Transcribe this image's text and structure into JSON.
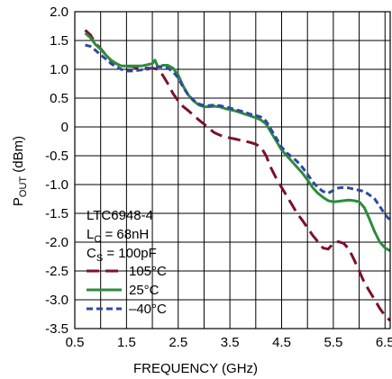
{
  "chart_data": {
    "type": "line",
    "title": "",
    "xlabel": "FREQUENCY (GHz)",
    "ylabel_main": "P",
    "ylabel_sub": "OUT",
    "ylabel_tail": " (dBm)",
    "xlim": [
      0.5,
      6.6
    ],
    "ylim": [
      -3.5,
      2.0
    ],
    "x_ticks": [
      0.5,
      1.5,
      2.5,
      3.5,
      4.5,
      5.5,
      6.5
    ],
    "x_tick_labels": [
      "0.5",
      "1.5",
      "2.5",
      "3.5",
      "4.5",
      "5.5",
      "6.5"
    ],
    "y_ticks": [
      2.0,
      1.5,
      1.0,
      0.5,
      0,
      -0.5,
      -1.0,
      -1.5,
      -2.0,
      -2.5,
      -3.0,
      -3.5
    ],
    "y_tick_labels": [
      "2.0",
      "1.5",
      "1.0",
      "0.5",
      "0",
      "-0.5",
      "-1.0",
      "-1.5",
      "-2.0",
      "-2.5",
      "-3.0",
      "-3.5"
    ],
    "grid": true,
    "annotation_lines": [
      {
        "main": "LTC6948-4",
        "sub": ""
      },
      {
        "main": "L",
        "sub": "C",
        "tail": " = 68nH"
      },
      {
        "main": "C",
        "sub": "S",
        "tail": " = 100pF"
      }
    ],
    "series": [
      {
        "name": "105°C",
        "color": "#7a1228",
        "dash": "long-dash",
        "x": [
          0.7,
          0.8,
          0.9,
          1.0,
          1.1,
          1.2,
          1.3,
          1.4,
          1.5,
          1.6,
          1.7,
          1.8,
          1.9,
          2.0,
          2.1,
          2.2,
          2.3,
          2.4,
          2.5,
          2.6,
          2.7,
          2.8,
          2.9,
          3.0,
          3.1,
          3.2,
          3.3,
          3.4,
          3.5,
          3.6,
          3.7,
          3.8,
          3.9,
          4.0,
          4.1,
          4.2,
          4.3,
          4.4,
          4.5,
          4.6,
          4.7,
          4.8,
          4.9,
          5.0,
          5.1,
          5.2,
          5.3,
          5.4,
          5.5,
          5.6,
          5.7,
          5.8,
          5.9,
          6.0,
          6.1,
          6.2,
          6.3,
          6.4,
          6.5,
          6.6
        ],
        "y": [
          1.68,
          1.6,
          1.45,
          1.36,
          1.25,
          1.15,
          1.1,
          1.05,
          1.05,
          1.05,
          1.03,
          1.02,
          1.02,
          1.02,
          1.0,
          0.9,
          0.75,
          0.58,
          0.45,
          0.35,
          0.28,
          0.2,
          0.12,
          0.05,
          -0.03,
          -0.1,
          -0.14,
          -0.17,
          -0.19,
          -0.21,
          -0.23,
          -0.25,
          -0.27,
          -0.3,
          -0.35,
          -0.5,
          -0.72,
          -0.9,
          -1.05,
          -1.2,
          -1.35,
          -1.5,
          -1.62,
          -1.75,
          -1.88,
          -1.99,
          -2.1,
          -2.12,
          -2.02,
          -1.99,
          -2.02,
          -2.12,
          -2.3,
          -2.5,
          -2.7,
          -2.85,
          -3.0,
          -3.15,
          -3.28,
          -3.36
        ]
      },
      {
        "name": "25°C",
        "color": "#2e8b3e",
        "dash": "solid",
        "x": [
          0.7,
          0.8,
          0.9,
          1.0,
          1.1,
          1.2,
          1.3,
          1.4,
          1.5,
          1.6,
          1.7,
          1.8,
          1.9,
          2.0,
          2.05,
          2.1,
          2.15,
          2.2,
          2.3,
          2.4,
          2.5,
          2.6,
          2.7,
          2.8,
          2.9,
          3.0,
          3.1,
          3.2,
          3.3,
          3.4,
          3.5,
          3.6,
          3.7,
          3.8,
          3.9,
          4.0,
          4.1,
          4.2,
          4.3,
          4.4,
          4.5,
          4.6,
          4.7,
          4.8,
          4.9,
          5.0,
          5.1,
          5.2,
          5.3,
          5.4,
          5.5,
          5.6,
          5.7,
          5.8,
          5.9,
          6.0,
          6.1,
          6.2,
          6.3,
          6.4,
          6.5,
          6.6
        ],
        "y": [
          1.63,
          1.55,
          1.43,
          1.35,
          1.25,
          1.16,
          1.1,
          1.06,
          1.06,
          1.06,
          1.06,
          1.06,
          1.08,
          1.1,
          1.16,
          1.06,
          1.04,
          1.07,
          1.07,
          1.02,
          0.9,
          0.7,
          0.55,
          0.45,
          0.38,
          0.35,
          0.35,
          0.36,
          0.35,
          0.32,
          0.3,
          0.28,
          0.25,
          0.22,
          0.19,
          0.16,
          0.12,
          0.05,
          -0.1,
          -0.25,
          -0.4,
          -0.5,
          -0.6,
          -0.7,
          -0.8,
          -0.92,
          -1.05,
          -1.15,
          -1.22,
          -1.28,
          -1.3,
          -1.29,
          -1.28,
          -1.27,
          -1.28,
          -1.3,
          -1.4,
          -1.6,
          -1.82,
          -2.0,
          -2.1,
          -2.15
        ]
      },
      {
        "name": "–40°C",
        "color": "#2c4a9e",
        "dash": "short-dash",
        "x": [
          0.7,
          0.8,
          0.9,
          1.0,
          1.1,
          1.2,
          1.3,
          1.4,
          1.5,
          1.6,
          1.7,
          1.8,
          1.9,
          2.0,
          2.1,
          2.2,
          2.3,
          2.4,
          2.5,
          2.6,
          2.7,
          2.8,
          2.9,
          3.0,
          3.1,
          3.2,
          3.3,
          3.4,
          3.5,
          3.6,
          3.7,
          3.8,
          3.9,
          4.0,
          4.1,
          4.2,
          4.3,
          4.4,
          4.5,
          4.6,
          4.7,
          4.8,
          4.9,
          5.0,
          5.1,
          5.2,
          5.3,
          5.4,
          5.5,
          5.6,
          5.7,
          5.8,
          5.9,
          6.0,
          6.1,
          6.2,
          6.3,
          6.4,
          6.5,
          6.6
        ],
        "y": [
          1.42,
          1.4,
          1.33,
          1.25,
          1.18,
          1.1,
          1.04,
          1.0,
          0.97,
          0.97,
          0.98,
          0.99,
          1.0,
          1.02,
          1.04,
          1.04,
          1.02,
          0.96,
          0.85,
          0.68,
          0.55,
          0.46,
          0.4,
          0.37,
          0.37,
          0.38,
          0.37,
          0.35,
          0.33,
          0.3,
          0.28,
          0.25,
          0.22,
          0.2,
          0.17,
          0.1,
          -0.05,
          -0.2,
          -0.35,
          -0.45,
          -0.52,
          -0.6,
          -0.7,
          -0.82,
          -0.95,
          -1.05,
          -1.12,
          -1.15,
          -1.1,
          -1.06,
          -1.05,
          -1.06,
          -1.08,
          -1.1,
          -1.12,
          -1.18,
          -1.25,
          -1.38,
          -1.52,
          -1.62
        ]
      }
    ]
  }
}
